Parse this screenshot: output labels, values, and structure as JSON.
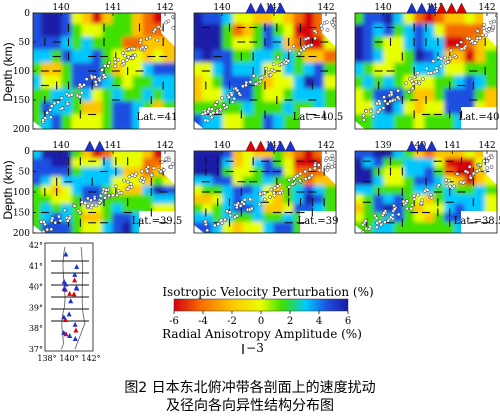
{
  "ylabel": "Depth (km)",
  "panels": [
    {
      "id": "a",
      "lat_label": "Lat.=41",
      "x_ticks": [
        "140",
        "141",
        "142"
      ]
    },
    {
      "id": "b",
      "lat_label": "Lat.=40.5",
      "x_ticks": [
        "140",
        "141",
        "142"
      ]
    },
    {
      "id": "c",
      "lat_label": "Lat.=40",
      "x_ticks": [
        "140",
        "141",
        "142"
      ]
    },
    {
      "id": "d",
      "lat_label": "Lat.=39.5",
      "x_ticks": [
        "140",
        "141",
        "142"
      ]
    },
    {
      "id": "e",
      "lat_label": "Lat.=39",
      "x_ticks": [
        "140",
        "141",
        "142"
      ]
    },
    {
      "id": "f",
      "lat_label": "Lat.=38.5",
      "x_ticks": [
        "139",
        "140",
        "141",
        "142"
      ]
    }
  ],
  "depth_ticks": [
    "0",
    "50",
    "100",
    "150",
    "200"
  ],
  "map": {
    "lat_ticks": [
      "42°",
      "41°",
      "40°",
      "39°",
      "38°",
      "37°"
    ],
    "lon_ticks": [
      "138°",
      "140°",
      "142°"
    ]
  },
  "colorbar": {
    "title": "Isotropic Velocity Perturbation (%)",
    "ticks": [
      "-6",
      "-4",
      "-2",
      "0",
      "2",
      "4",
      "6"
    ],
    "colors": [
      "#d7000f",
      "#f56a00",
      "#ffc400",
      "#e8ff00",
      "#3fe000",
      "#00c8ff",
      "#1d4fe0",
      "#1a1aa8"
    ]
  },
  "anisotropy": {
    "title": "Radial Anisotropy Amplitude (%)",
    "value": "−3"
  },
  "caption": {
    "line1": "图2 日本东北俯冲带各剖面上的速度扰动",
    "line2": "及径向各向异性结构分布图"
  }
}
